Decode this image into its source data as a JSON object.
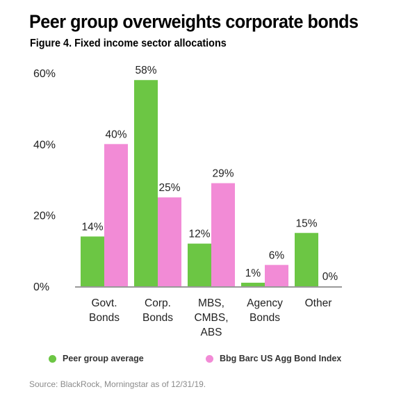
{
  "header": {
    "title": "Peer group overweights corporate bonds",
    "subtitle": "Figure 4. Fixed income sector allocations"
  },
  "source": "Source: BlackRock, Morningstar as of 12/31/19.",
  "chart_data": {
    "type": "bar",
    "title": "Peer group overweights corporate bonds",
    "subtitle": "Figure 4. Fixed income sector allocations",
    "categories": [
      [
        "Govt.",
        "Bonds"
      ],
      [
        "Corp.",
        "Bonds"
      ],
      [
        "MBS,",
        "CMBS,",
        "ABS"
      ],
      [
        "Agency",
        "Bonds"
      ],
      [
        "Other"
      ]
    ],
    "series": [
      {
        "name": "Peer group average",
        "color": "#6cc644",
        "values": [
          14,
          58,
          12,
          1,
          15
        ],
        "labels": [
          "14%",
          "58%",
          "12%",
          "1%",
          "15%"
        ]
      },
      {
        "name": "Bbg Barc US Agg Bond Index",
        "color": "#f28bd6",
        "values": [
          40,
          25,
          29,
          6,
          0
        ],
        "labels": [
          "40%",
          "25%",
          "29%",
          "6%",
          "0%"
        ]
      }
    ],
    "yticks": [
      "0%",
      "20%",
      "40%",
      "60%"
    ],
    "ytick_values": [
      0,
      20,
      40,
      60
    ],
    "ylim": [
      0,
      60
    ],
    "xlabel": "",
    "ylabel": "",
    "grid": false,
    "legend_position": "bottom"
  }
}
